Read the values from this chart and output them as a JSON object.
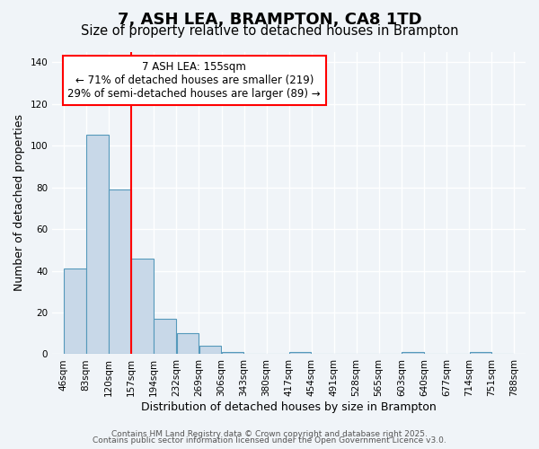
{
  "title": "7, ASH LEA, BRAMPTON, CA8 1TD",
  "subtitle": "Size of property relative to detached houses in Brampton",
  "xlabel": "Distribution of detached houses by size in Brampton",
  "ylabel": "Number of detached properties",
  "bar_color": "#c8d8e8",
  "bar_edge_color": "#5599bb",
  "bg_color": "#f0f4f8",
  "grid_color": "#ffffff",
  "reference_line_x": 157,
  "reference_line_color": "red",
  "bin_edges": [
    46,
    83,
    120,
    157,
    194,
    232,
    269,
    306,
    343,
    380,
    417,
    454,
    491,
    528,
    565,
    603,
    640,
    677,
    714,
    751,
    788
  ],
  "bin_labels": [
    "46sqm",
    "83sqm",
    "120sqm",
    "157sqm",
    "194sqm",
    "232sqm",
    "269sqm",
    "306sqm",
    "343sqm",
    "380sqm",
    "417sqm",
    "454sqm",
    "491sqm",
    "528sqm",
    "565sqm",
    "603sqm",
    "640sqm",
    "677sqm",
    "714sqm",
    "751sqm",
    "788sqm"
  ],
  "counts": [
    41,
    105,
    79,
    46,
    17,
    10,
    4,
    1,
    0,
    0,
    1,
    0,
    0,
    0,
    0,
    1,
    0,
    0,
    1,
    0
  ],
  "ylim": [
    0,
    145
  ],
  "yticks": [
    0,
    20,
    40,
    60,
    80,
    100,
    120,
    140
  ],
  "annotation_title": "7 ASH LEA: 155sqm",
  "annotation_line1": "← 71% of detached houses are smaller (219)",
  "annotation_line2": "29% of semi-detached houses are larger (89) →",
  "annotation_box_color": "white",
  "annotation_box_edge": "red",
  "footer1": "Contains HM Land Registry data © Crown copyright and database right 2025.",
  "footer2": "Contains public sector information licensed under the Open Government Licence v3.0.",
  "title_fontsize": 13,
  "subtitle_fontsize": 10.5,
  "label_fontsize": 9,
  "tick_fontsize": 7.5,
  "annotation_fontsize": 8.5,
  "footer_fontsize": 6.5
}
